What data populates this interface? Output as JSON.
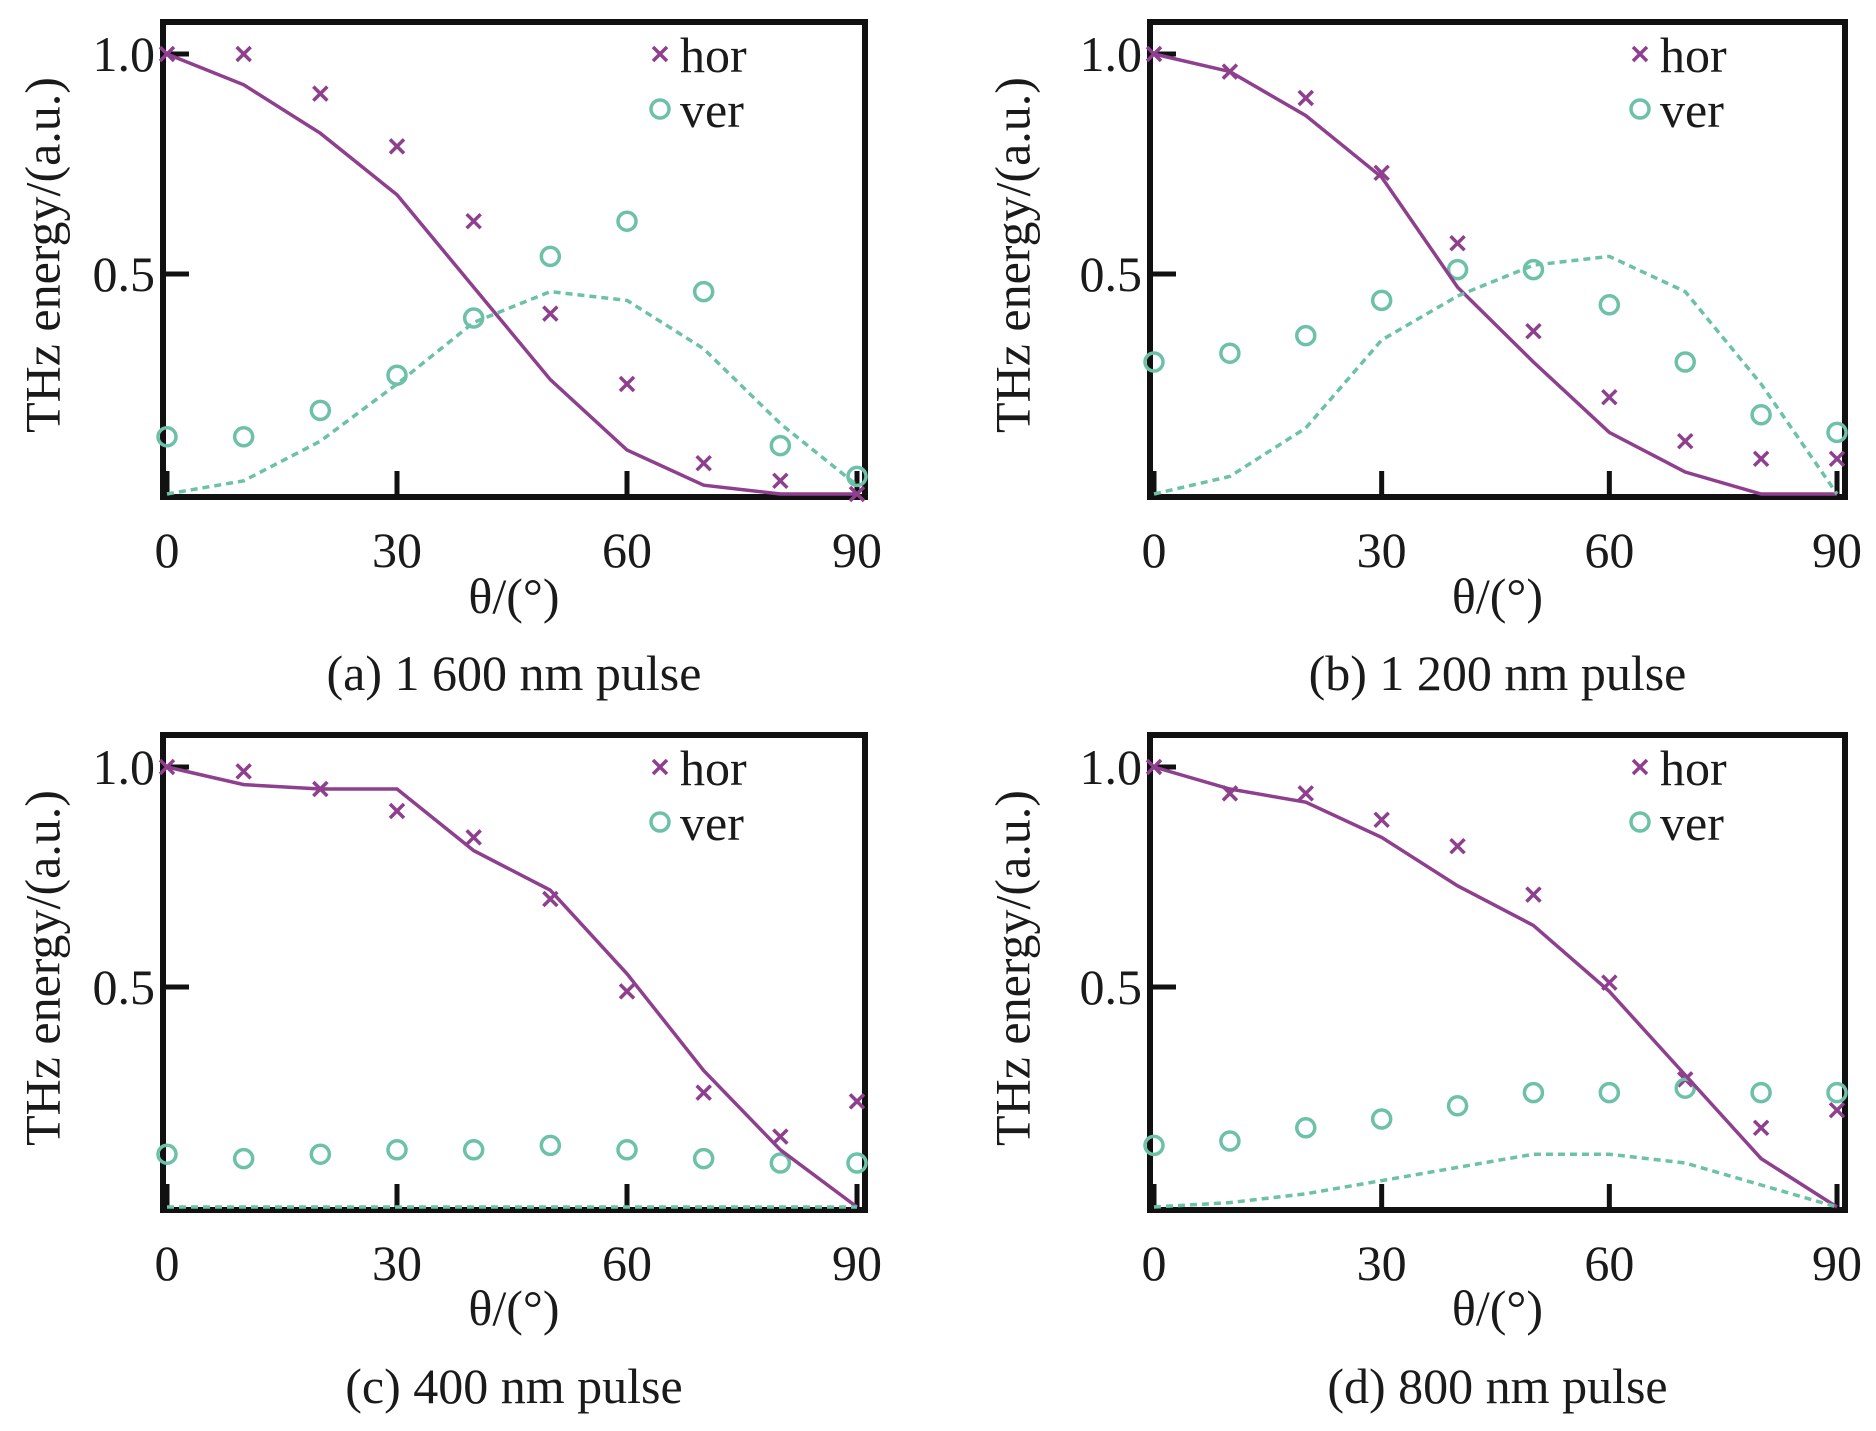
{
  "colors": {
    "hor": "#8e3f8e",
    "ver": "#6cc1a6"
  },
  "legend": {
    "hor": "hor",
    "ver": "ver"
  },
  "chart_data": [
    {
      "type": "scatter",
      "caption": "(a) 1 600 nm pulse",
      "xlabel": "θ/(°)",
      "ylabel": "THz energy/(a.u.)",
      "xlim": [
        0,
        90
      ],
      "ylim": [
        0,
        1.05
      ],
      "xticks": [
        "0",
        "30",
        "60",
        "90"
      ],
      "yticks": [
        "0.5",
        "1.0"
      ],
      "legend_position": "top-right",
      "series": [
        {
          "name": "hor",
          "kind": "points",
          "x": [
            0,
            10,
            20,
            30,
            40,
            50,
            60,
            70,
            80,
            90
          ],
          "y": [
            1.0,
            1.0,
            0.91,
            0.79,
            0.62,
            0.41,
            0.25,
            0.07,
            0.03,
            0.0
          ]
        },
        {
          "name": "ver",
          "kind": "points",
          "x": [
            0,
            10,
            20,
            30,
            40,
            50,
            60,
            70,
            80,
            90
          ],
          "y": [
            0.13,
            0.13,
            0.19,
            0.27,
            0.4,
            0.54,
            0.62,
            0.46,
            0.11,
            0.04
          ]
        },
        {
          "kind": "fit-hor",
          "x": [
            0,
            10,
            20,
            30,
            40,
            50,
            60,
            70,
            80,
            90
          ],
          "y": [
            1.0,
            0.93,
            0.82,
            0.68,
            0.47,
            0.26,
            0.1,
            0.02,
            0.0,
            0.0
          ]
        },
        {
          "kind": "fit-ver",
          "x": [
            0,
            10,
            20,
            30,
            40,
            50,
            60,
            70,
            80,
            90
          ],
          "y": [
            0.0,
            0.03,
            0.12,
            0.25,
            0.39,
            0.46,
            0.44,
            0.33,
            0.16,
            0.02
          ]
        }
      ]
    },
    {
      "type": "scatter",
      "caption": "(b) 1 200 nm pulse",
      "xlabel": "θ/(°)",
      "ylabel": "THz energy/(a.u.)",
      "xlim": [
        0,
        90
      ],
      "ylim": [
        0,
        1.05
      ],
      "xticks": [
        "0",
        "30",
        "60",
        "90"
      ],
      "yticks": [
        "0.5",
        "1.0"
      ],
      "legend_position": "top-right",
      "series": [
        {
          "name": "hor",
          "kind": "points",
          "x": [
            0,
            10,
            20,
            30,
            40,
            50,
            60,
            70,
            80,
            90
          ],
          "y": [
            1.0,
            0.96,
            0.9,
            0.73,
            0.57,
            0.37,
            0.22,
            0.12,
            0.08,
            0.08
          ]
        },
        {
          "name": "ver",
          "kind": "points",
          "x": [
            0,
            10,
            20,
            30,
            40,
            50,
            60,
            70,
            80,
            90
          ],
          "y": [
            0.3,
            0.32,
            0.36,
            0.44,
            0.51,
            0.51,
            0.43,
            0.3,
            0.18,
            0.14
          ]
        },
        {
          "kind": "fit-hor",
          "x": [
            0,
            10,
            20,
            30,
            40,
            50,
            60,
            70,
            80,
            90
          ],
          "y": [
            1.0,
            0.96,
            0.86,
            0.72,
            0.47,
            0.3,
            0.14,
            0.05,
            0.0,
            0.0
          ]
        },
        {
          "kind": "fit-ver",
          "x": [
            0,
            10,
            20,
            30,
            40,
            50,
            60,
            70,
            80,
            90
          ],
          "y": [
            0.0,
            0.04,
            0.15,
            0.35,
            0.45,
            0.52,
            0.54,
            0.46,
            0.25,
            0.0
          ]
        }
      ]
    },
    {
      "type": "scatter",
      "caption": "(c) 400 nm pulse",
      "xlabel": "θ/(°)",
      "ylabel": "THz energy/(a.u.)",
      "xlim": [
        0,
        90
      ],
      "ylim": [
        0,
        1.05
      ],
      "xticks": [
        "0",
        "30",
        "60",
        "90"
      ],
      "yticks": [
        "0.5",
        "1.0"
      ],
      "legend_position": "top-right",
      "series": [
        {
          "name": "hor",
          "kind": "points",
          "x": [
            0,
            10,
            20,
            30,
            40,
            50,
            60,
            70,
            80,
            90
          ],
          "y": [
            1.0,
            0.99,
            0.95,
            0.9,
            0.84,
            0.7,
            0.49,
            0.26,
            0.16,
            0.24
          ]
        },
        {
          "name": "ver",
          "kind": "points",
          "x": [
            0,
            10,
            20,
            30,
            40,
            50,
            60,
            70,
            80,
            90
          ],
          "y": [
            0.12,
            0.11,
            0.12,
            0.13,
            0.13,
            0.14,
            0.13,
            0.11,
            0.1,
            0.1
          ]
        },
        {
          "kind": "fit-hor",
          "x": [
            0,
            10,
            20,
            30,
            40,
            50,
            60,
            70,
            80,
            90
          ],
          "y": [
            1.0,
            0.96,
            0.95,
            0.95,
            0.81,
            0.72,
            0.53,
            0.31,
            0.13,
            0.0
          ]
        },
        {
          "kind": "fit-ver",
          "x": [
            0,
            10,
            20,
            30,
            40,
            50,
            60,
            70,
            80,
            90
          ],
          "y": [
            0.0,
            0.0,
            0.0,
            0.0,
            0.0,
            0.0,
            0.0,
            0.0,
            0.0,
            0.0
          ]
        }
      ]
    },
    {
      "type": "scatter",
      "caption": "(d) 800 nm pulse",
      "xlabel": "θ/(°)",
      "ylabel": "THz energy/(a.u.)",
      "xlim": [
        0,
        90
      ],
      "ylim": [
        0,
        1.05
      ],
      "xticks": [
        "0",
        "30",
        "60",
        "90"
      ],
      "yticks": [
        "0.5",
        "1.0"
      ],
      "legend_position": "top-right",
      "series": [
        {
          "name": "hor",
          "kind": "points",
          "x": [
            0,
            10,
            20,
            30,
            40,
            50,
            60,
            70,
            80,
            90
          ],
          "y": [
            1.0,
            0.94,
            0.94,
            0.88,
            0.82,
            0.71,
            0.51,
            0.29,
            0.18,
            0.22
          ]
        },
        {
          "name": "ver",
          "kind": "points",
          "x": [
            0,
            10,
            20,
            30,
            40,
            50,
            60,
            70,
            80,
            90
          ],
          "y": [
            0.14,
            0.15,
            0.18,
            0.2,
            0.23,
            0.26,
            0.26,
            0.27,
            0.26,
            0.26
          ]
        },
        {
          "kind": "fit-hor",
          "x": [
            0,
            10,
            20,
            30,
            40,
            50,
            60,
            70,
            80,
            90
          ],
          "y": [
            1.0,
            0.95,
            0.92,
            0.84,
            0.73,
            0.64,
            0.49,
            0.3,
            0.11,
            0.0
          ]
        },
        {
          "kind": "fit-ver",
          "x": [
            0,
            10,
            20,
            30,
            40,
            50,
            60,
            70,
            80,
            90
          ],
          "y": [
            0.0,
            0.01,
            0.03,
            0.06,
            0.09,
            0.12,
            0.12,
            0.1,
            0.05,
            0.0
          ]
        }
      ]
    }
  ]
}
